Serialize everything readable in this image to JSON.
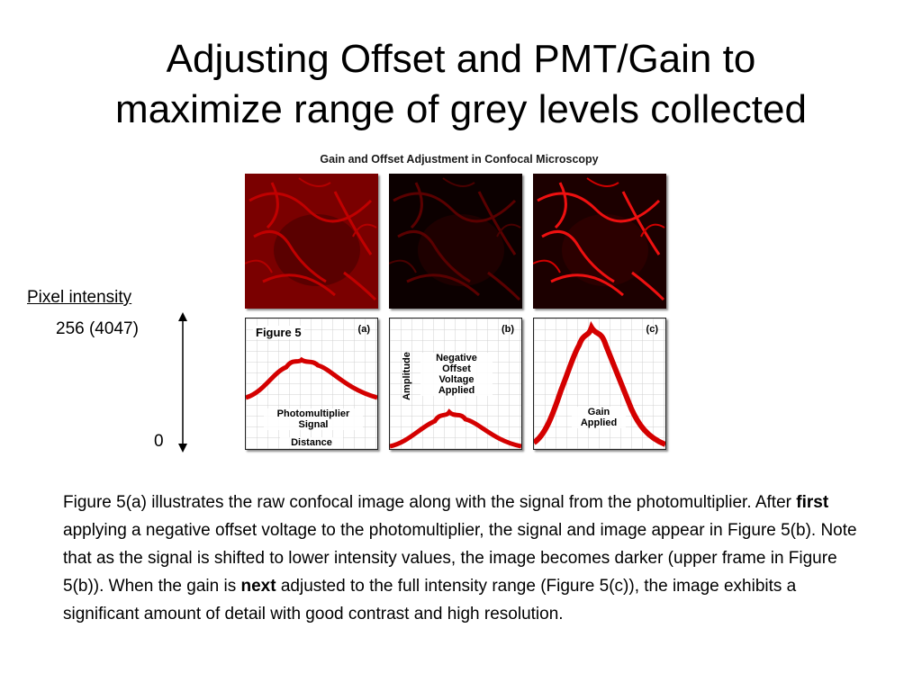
{
  "slide": {
    "title_line1": "Adjusting Offset and PMT/Gain to",
    "title_line2": "maximize range of grey levels collected"
  },
  "figure": {
    "heading": "Gain and Offset Adjustment in Confocal Microscopy",
    "figure_label": "Figure 5",
    "amplitude_label": "Amplitude",
    "panels": [
      {
        "tag": "(a)",
        "caption_line1": "Photomultiplier",
        "caption_line2": "Signal",
        "axis_label": "Distance"
      },
      {
        "tag": "(b)",
        "caption_line1": "Negative",
        "caption_line2": "Offset",
        "caption_line3": "Voltage",
        "caption_line4": "Applied"
      },
      {
        "tag": "(c)",
        "caption_line1": "Gain",
        "caption_line2": "Applied"
      }
    ]
  },
  "axis": {
    "title": "Pixel intensity",
    "max_label": "256 (4047)",
    "min_label": "0"
  },
  "body": {
    "t1": "Figure 5(a) illustrates the raw confocal image along with the signal from the photomultiplier. After ",
    "b1": "first",
    "t2": " applying a negative offset voltage to the photomultiplier, the signal and image appear in Figure 5(b). Note that as the signal is shifted to lower intensity values, the image becomes darker (upper frame in Figure 5(b)). When the gain is ",
    "b2": "next",
    "t3": " adjusted to the full intensity range (Figure 5(c)), the image exhibits a significant amount of detail with good contrast and high resolution."
  },
  "colors": {
    "signal_red": "#d40000",
    "micro_dark": "#1a0000"
  }
}
